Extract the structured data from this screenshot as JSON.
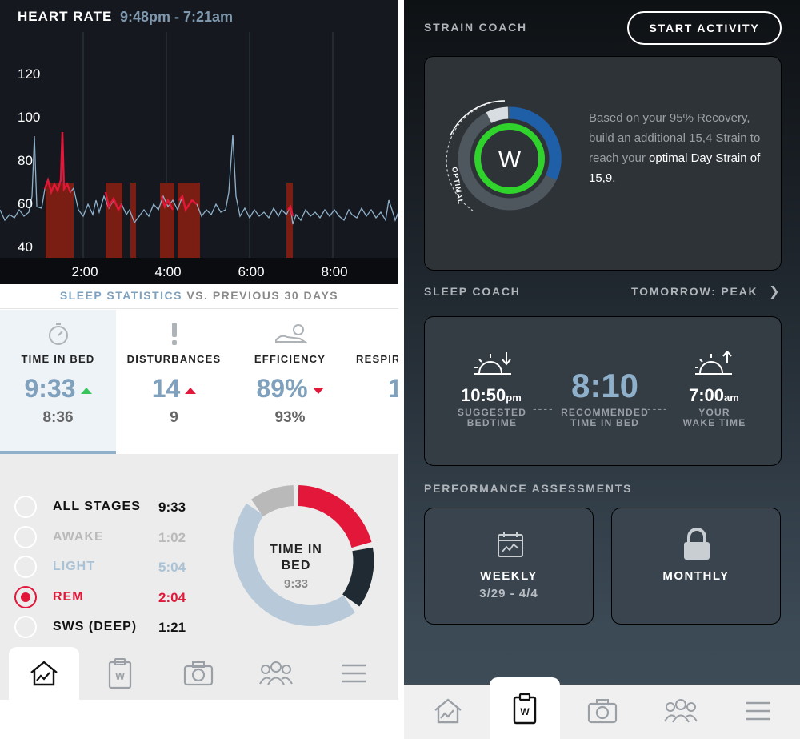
{
  "heart_rate": {
    "title": "HEART RATE",
    "time_range": "9:48pm - 7:21am",
    "y_ticks": [
      "120",
      "100",
      "80",
      "60",
      "40"
    ],
    "x_ticks": [
      "2:00",
      "4:00",
      "6:00",
      "8:00"
    ]
  },
  "sleep_stats": {
    "header_highlight": "SLEEP STATISTICS",
    "header_rest": " VS. PREVIOUS 30 DAYS",
    "columns": [
      {
        "label": "TIME IN BED",
        "value": "9:33",
        "prev": "8:36",
        "trend": "up",
        "icon": "stopwatch-icon"
      },
      {
        "label": "DISTURBANCES",
        "value": "14",
        "prev": "9",
        "trend": "up",
        "icon": "exclamation-icon"
      },
      {
        "label": "EFFICIENCY",
        "value": "89%",
        "prev": "93%",
        "trend": "down",
        "icon": "sleeper-icon"
      },
      {
        "label": "RESPIR",
        "value": "1",
        "prev": "",
        "trend": "",
        "icon": ""
      }
    ]
  },
  "stages": {
    "items": [
      {
        "name": "ALL STAGES",
        "time": "9:33",
        "color": "#111111"
      },
      {
        "name": "AWAKE",
        "time": "1:02",
        "color": "#b9b9b9"
      },
      {
        "name": "LIGHT",
        "time": "5:04",
        "color": "#a9c2d6"
      },
      {
        "name": "REM",
        "time": "2:04",
        "color": "#e2173a"
      },
      {
        "name": "SWS (DEEP)",
        "time": "1:21",
        "color": "#111111"
      }
    ],
    "selected_index": 3,
    "donut_title": "TIME IN BED",
    "donut_value": "9:33"
  },
  "strain_coach": {
    "label": "STRAIN COACH",
    "start_button": "START ACTIVITY",
    "optimal_label": "OPTIMAL",
    "logo_text": "W",
    "text_line1": "Based on your 95% Recovery, build an additional 15,4 Strain to reach your",
    "text_line2": "optimal Day Strain of 15,9."
  },
  "sleep_coach": {
    "label": "SLEEP COACH",
    "tomorrow": "TOMORROW: PEAK",
    "bedtime": "10:50",
    "bedtime_ampm": "pm",
    "bedtime_label_1": "SUGGESTED",
    "bedtime_label_2": "BEDTIME",
    "time_in_bed": "8:10",
    "time_in_bed_label_1": "RECOMMENDED",
    "time_in_bed_label_2": "TIME IN BED",
    "wake": "7:00",
    "wake_ampm": "am",
    "wake_label_1": "YOUR",
    "wake_label_2": "WAKE TIME"
  },
  "performance": {
    "label": "PERFORMANCE ASSESSMENTS",
    "weekly_title": "WEEKLY",
    "weekly_range": "3/29 - 4/4",
    "monthly_title": "MONTHLY"
  },
  "nav": {
    "items": [
      "home-icon",
      "clipboard-icon",
      "camera-icon",
      "team-icon",
      "menu-icon"
    ]
  },
  "colors": {
    "accent_blue": "#7fa1bd",
    "rem_red": "#e2173a",
    "green": "#2fd32b",
    "trend_up": "#38c35b"
  }
}
